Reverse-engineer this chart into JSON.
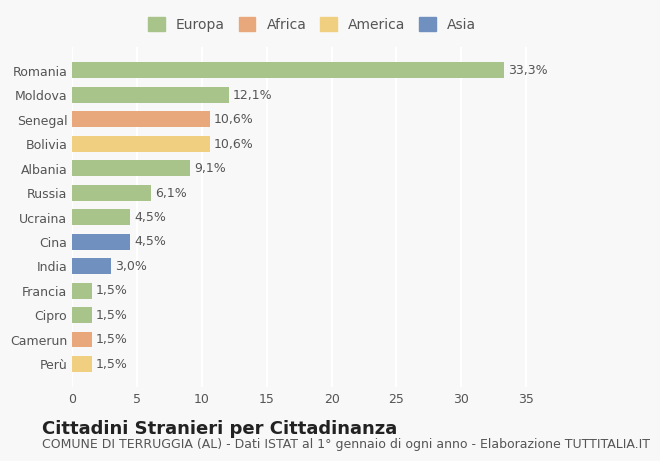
{
  "countries": [
    "Romania",
    "Moldova",
    "Senegal",
    "Bolivia",
    "Albania",
    "Russia",
    "Ucraina",
    "Cina",
    "India",
    "Francia",
    "Cipro",
    "Camerun",
    "Perù"
  ],
  "values": [
    33.3,
    12.1,
    10.6,
    10.6,
    9.1,
    6.1,
    4.5,
    4.5,
    3.0,
    1.5,
    1.5,
    1.5,
    1.5
  ],
  "labels": [
    "33,3%",
    "12,1%",
    "10,6%",
    "10,6%",
    "9,1%",
    "6,1%",
    "4,5%",
    "4,5%",
    "3,0%",
    "1,5%",
    "1,5%",
    "1,5%",
    "1,5%"
  ],
  "continents": [
    "Europa",
    "Europa",
    "Africa",
    "America",
    "Europa",
    "Europa",
    "Europa",
    "Asia",
    "Asia",
    "Europa",
    "Europa",
    "Africa",
    "America"
  ],
  "continent_colors": {
    "Europa": "#a8c48a",
    "Africa": "#e8a87c",
    "America": "#f0d080",
    "Asia": "#7090c0"
  },
  "legend_order": [
    "Europa",
    "Africa",
    "America",
    "Asia"
  ],
  "title": "Cittadini Stranieri per Cittadinanza",
  "subtitle": "COMUNE DI TERRUGGIA (AL) - Dati ISTAT al 1° gennaio di ogni anno - Elaborazione TUTTITALIA.IT",
  "xlim": [
    0,
    37
  ],
  "xticks": [
    0,
    5,
    10,
    15,
    20,
    25,
    30,
    35
  ],
  "background_color": "#f8f8f8",
  "grid_color": "#ffffff",
  "title_fontsize": 13,
  "subtitle_fontsize": 9,
  "label_fontsize": 9,
  "tick_fontsize": 9,
  "legend_fontsize": 10
}
